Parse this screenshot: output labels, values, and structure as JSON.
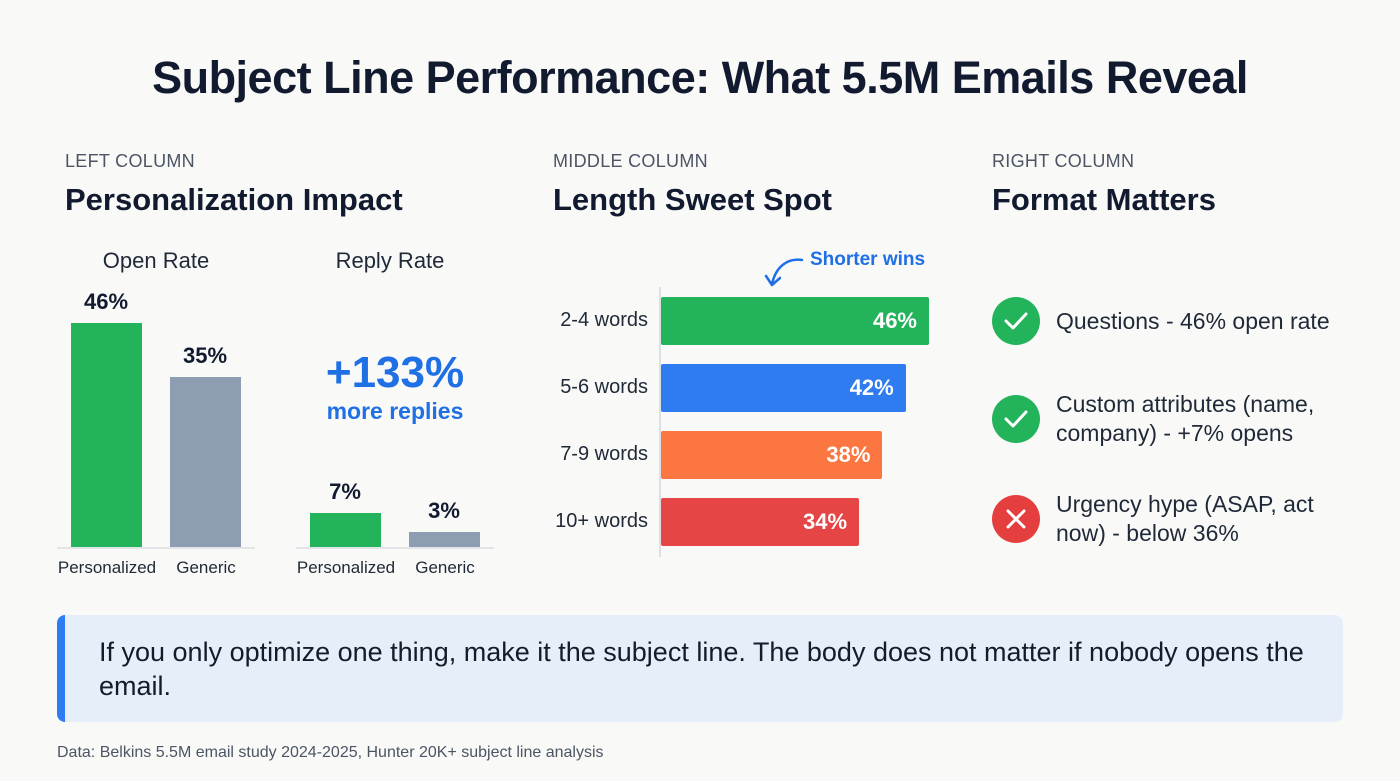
{
  "title": "Subject Line Performance: What 5.5M Emails Reveal",
  "left": {
    "eyebrow": "LEFT COLUMN",
    "heading": "Personalization Impact",
    "open_rate": {
      "title": "Open Rate",
      "bars": [
        {
          "label": "Personalized",
          "value": 46,
          "text": "46%",
          "color": "#22b35b"
        },
        {
          "label": "Generic",
          "value": 35,
          "text": "35%",
          "color": "#8d9db2"
        }
      ]
    },
    "reply_rate": {
      "title": "Reply Rate",
      "bars": [
        {
          "label": "Personalized",
          "value": 7,
          "text": "7%",
          "color": "#22b35b"
        },
        {
          "label": "Generic",
          "value": 3,
          "text": "3%",
          "color": "#8d9db2"
        }
      ],
      "highlight": "+133%",
      "highlight_sub": "more replies"
    }
  },
  "middle": {
    "eyebrow": "MIDDLE COLUMN",
    "heading": "Length Sweet Spot",
    "annotation": "Shorter wins"
  },
  "right": {
    "eyebrow": "RIGHT COLUMN",
    "heading": "Format Matters",
    "items": [
      {
        "icon": "check-icon",
        "status": "good",
        "text": "Questions - 46% open rate",
        "color": "#22b35b"
      },
      {
        "icon": "check-icon",
        "status": "good",
        "text": "Custom attributes (name, company) - +7% opens",
        "color": "#22b35b"
      },
      {
        "icon": "x-icon",
        "status": "bad",
        "text": "Urgency hype (ASAP, act now) - below 36%",
        "color": "#e53e3e"
      }
    ]
  },
  "callout": "If you only optimize one thing, make it the subject line. The body does not matter if nobody opens the email.",
  "source": "Data: Belkins 5.5M email study 2024-2025, Hunter 20K+ subject line analysis",
  "chart_data": [
    {
      "type": "bar",
      "title": "Open Rate",
      "categories": [
        "Personalized",
        "Generic"
      ],
      "values": [
        46,
        35
      ],
      "unit": "%"
    },
    {
      "type": "bar",
      "title": "Reply Rate",
      "categories": [
        "Personalized",
        "Generic"
      ],
      "values": [
        7,
        3
      ],
      "unit": "%"
    },
    {
      "type": "bar",
      "orientation": "horizontal",
      "categories": [
        "2-4 words",
        "5-6 words",
        "7-9 words",
        "10+ words"
      ],
      "values": [
        46,
        42,
        38,
        34
      ],
      "labels": [
        "46%",
        "42%",
        "38%",
        "34%"
      ],
      "colors": [
        "#22b35b",
        "#2f7cf0",
        "#fb7641",
        "#e54545"
      ]
    }
  ]
}
